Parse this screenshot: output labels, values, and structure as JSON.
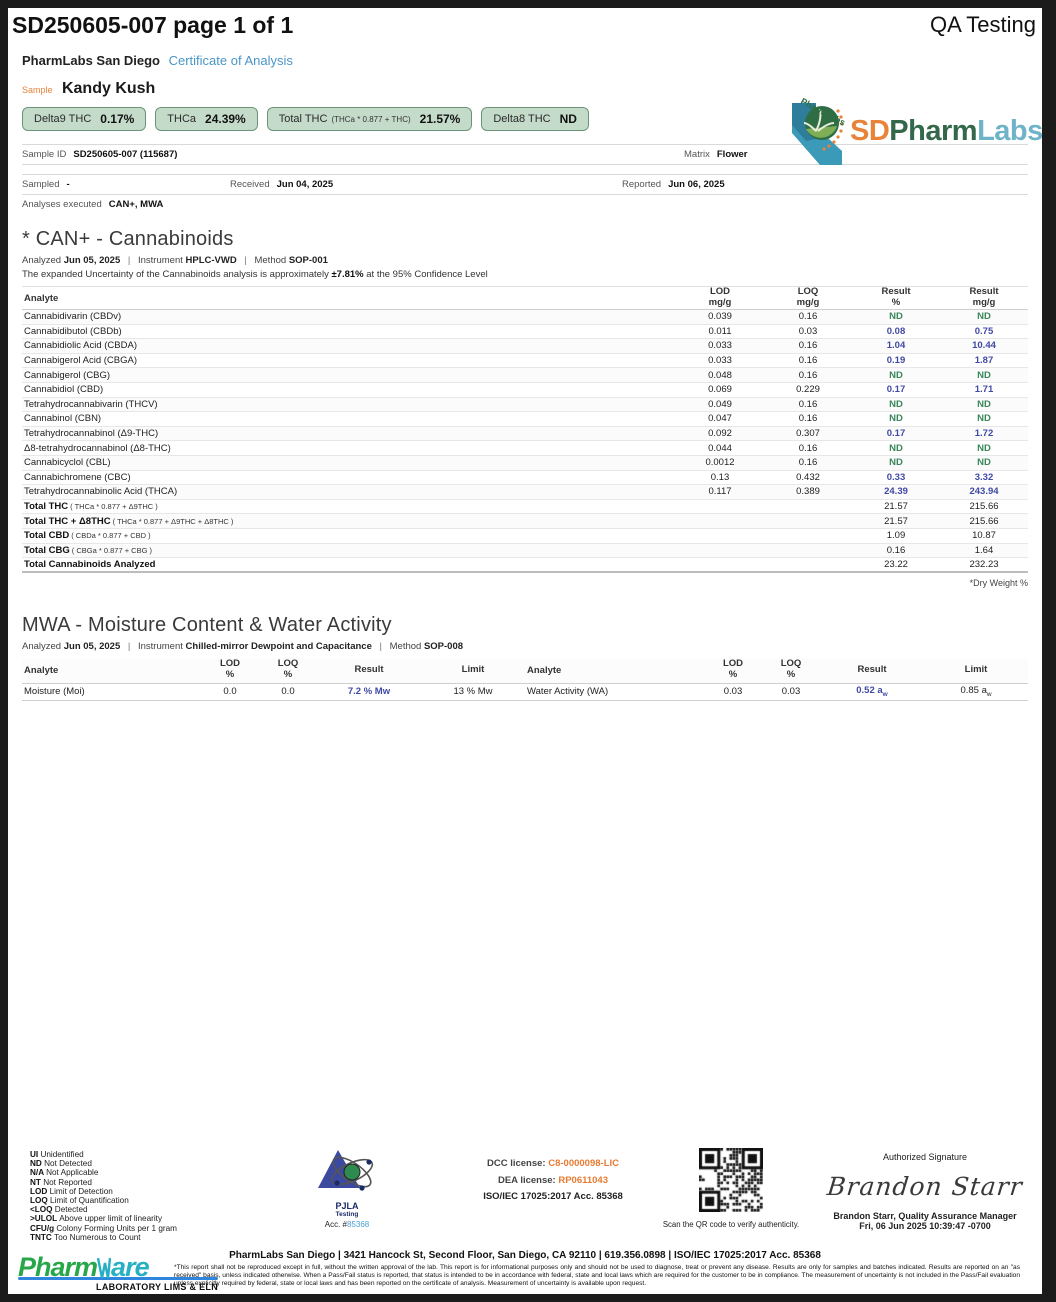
{
  "header": {
    "doc_title": "SD250605-007 page 1 of 1",
    "right_label": "QA Testing"
  },
  "lab": {
    "name": "PharmLabs San Diego",
    "doc_type": "Certificate of Analysis",
    "logo_sd": "SD",
    "logo_pharm": "Pharm",
    "logo_labs": "Labs"
  },
  "colors": {
    "accent_blue": "#4a96c8",
    "accent_orange": "#e8833a",
    "result_blue": "#4049a5",
    "nd_green": "#38875a",
    "pill_bg": "#c5dbca",
    "pill_border": "#6a9478"
  },
  "sample": {
    "label": "Sample",
    "name": "Kandy Kush",
    "pills": [
      {
        "label": "Delta9 THC",
        "formula": "",
        "value": "0.17%"
      },
      {
        "label": "THCa",
        "formula": "",
        "value": "24.39%"
      },
      {
        "label": "Total THC",
        "formula": "(THCa * 0.877 + THC)",
        "value": "21.57%"
      },
      {
        "label": "Delta8 THC",
        "formula": "",
        "value": "ND"
      }
    ],
    "meta": {
      "sample_id_label": "Sample ID",
      "sample_id": "SD250605-007 (115687)",
      "matrix_label": "Matrix",
      "matrix": "Flower",
      "sampled_label": "Sampled",
      "sampled": "-",
      "received_label": "Received",
      "received": "Jun 04, 2025",
      "reported_label": "Reported",
      "reported": "Jun 06, 2025",
      "analyses_label": "Analyses executed",
      "analyses": "CAN+, MWA"
    }
  },
  "cannabinoids": {
    "title": "* CAN+ - Cannabinoids",
    "analyzed_label": "Analyzed",
    "analyzed": "Jun 05, 2025",
    "instrument_label": "Instrument",
    "instrument": "HPLC-VWD",
    "method_label": "Method",
    "method": "SOP-001",
    "uncertainty_prefix": "The expanded Uncertainty of the Cannabinoids analysis is approximately",
    "uncertainty_value": "±7.81%",
    "uncertainty_suffix": "at the 95% Confidence Level",
    "analyte_col": "Analyte",
    "columns": [
      [
        "LOD",
        "mg/g"
      ],
      [
        "LOQ",
        "mg/g"
      ],
      [
        "Result",
        "%"
      ],
      [
        "Result",
        "mg/g"
      ]
    ],
    "rows": [
      {
        "analyte": "Cannabidivarin (CBDv)",
        "lod": "0.039",
        "loq": "0.16",
        "pct": "ND",
        "mgg": "ND"
      },
      {
        "analyte": "Cannabidibutol (CBDb)",
        "lod": "0.011",
        "loq": "0.03",
        "pct": "0.08",
        "mgg": "0.75"
      },
      {
        "analyte": "Cannabidiolic Acid (CBDA)",
        "lod": "0.033",
        "loq": "0.16",
        "pct": "1.04",
        "mgg": "10.44"
      },
      {
        "analyte": "Cannabigerol Acid (CBGA)",
        "lod": "0.033",
        "loq": "0.16",
        "pct": "0.19",
        "mgg": "1.87"
      },
      {
        "analyte": "Cannabigerol (CBG)",
        "lod": "0.048",
        "loq": "0.16",
        "pct": "ND",
        "mgg": "ND"
      },
      {
        "analyte": "Cannabidiol (CBD)",
        "lod": "0.069",
        "loq": "0.229",
        "pct": "0.17",
        "mgg": "1.71"
      },
      {
        "analyte": "Tetrahydrocannabivarin (THCV)",
        "lod": "0.049",
        "loq": "0.16",
        "pct": "ND",
        "mgg": "ND"
      },
      {
        "analyte": "Cannabinol (CBN)",
        "lod": "0.047",
        "loq": "0.16",
        "pct": "ND",
        "mgg": "ND"
      },
      {
        "analyte": "Tetrahydrocannabinol (Δ9-THC)",
        "lod": "0.092",
        "loq": "0.307",
        "pct": "0.17",
        "mgg": "1.72"
      },
      {
        "analyte": "Δ8-tetrahydrocannabinol (Δ8-THC)",
        "lod": "0.044",
        "loq": "0.16",
        "pct": "ND",
        "mgg": "ND"
      },
      {
        "analyte": "Cannabicyclol (CBL)",
        "lod": "0.0012",
        "loq": "0.16",
        "pct": "ND",
        "mgg": "ND"
      },
      {
        "analyte": "Cannabichromene (CBC)",
        "lod": "0.13",
        "loq": "0.432",
        "pct": "0.33",
        "mgg": "3.32"
      },
      {
        "analyte": "Tetrahydrocannabinolic Acid (THCA)",
        "lod": "0.117",
        "loq": "0.389",
        "pct": "24.39",
        "mgg": "243.94"
      }
    ],
    "totals": [
      {
        "label": "Total THC",
        "formula": "( THCa * 0.877 + Δ9THC )",
        "pct": "21.57",
        "mgg": "215.66"
      },
      {
        "label": "Total THC + Δ8THC",
        "formula": "( THCa * 0.877 + Δ9THC + Δ8THC )",
        "pct": "21.57",
        "mgg": "215.66"
      },
      {
        "label": "Total CBD",
        "formula": "( CBDa * 0.877 + CBD )",
        "pct": "1.09",
        "mgg": "10.87"
      },
      {
        "label": "Total CBG",
        "formula": "( CBGa * 0.877 + CBG )",
        "pct": "0.16",
        "mgg": "1.64"
      },
      {
        "label": "Total Cannabinoids Analyzed",
        "formula": "",
        "pct": "23.22",
        "mgg": "232.23"
      }
    ],
    "dry_weight_note": "*Dry Weight %"
  },
  "mwa": {
    "title": "MWA - Moisture Content & Water Activity",
    "analyzed_label": "Analyzed",
    "analyzed": "Jun 05, 2025",
    "instrument_label": "Instrument",
    "instrument": "Chilled-mirror Dewpoint and Capacitance",
    "method_label": "Method",
    "method": "SOP-008",
    "analyte_col": "Analyte",
    "columns": [
      [
        "LOD",
        "%"
      ],
      [
        "LOQ",
        "%"
      ],
      [
        "Result",
        ""
      ],
      [
        "Limit",
        ""
      ]
    ],
    "rows": [
      {
        "analyte": "Moisture (Moi)",
        "lod": "0.0",
        "loq": "0.0",
        "result": "7.2 % Mw",
        "limit": "13 % Mw"
      },
      {
        "analyte": "Water Activity (WA)",
        "lod": "0.03",
        "loq": "0.03",
        "result": "0.52 a_w",
        "limit": "0.85 a_w"
      }
    ]
  },
  "footer": {
    "legend": [
      {
        "abbr": "UI",
        "text": "Unidentified"
      },
      {
        "abbr": "ND",
        "text": "Not Detected"
      },
      {
        "abbr": "N/A",
        "text": "Not Applicable"
      },
      {
        "abbr": "NT",
        "text": "Not Reported"
      },
      {
        "abbr": "LOD",
        "text": "Limit of Detection"
      },
      {
        "abbr": "LOQ",
        "text": "Limit of Quantification"
      },
      {
        "abbr": "<LOQ",
        "text": "Detected"
      },
      {
        "abbr": ">ULOL",
        "text": "Above upper limit of linearity"
      },
      {
        "abbr": "CFU/g",
        "text": "Colony Forming Units per 1 gram"
      },
      {
        "abbr": "TNTC",
        "text": "Too Numerous to Count"
      }
    ],
    "pjla": {
      "name": "PJLA",
      "sub": "Testing",
      "acc_prefix": "Acc. #",
      "acc_number": "85368"
    },
    "licenses": {
      "dcc_label": "DCC license:",
      "dcc": "C8-0000098-LIC",
      "dea_label": "DEA license:",
      "dea": "RP0611043",
      "iso": "ISO/IEC 17025:2017 Acc. 85368"
    },
    "qr_caption": "Scan the QR code to verify authenticity.",
    "signature": {
      "label": "Authorized Signature",
      "script": "Brandon Starr",
      "name": "Brandon Starr, Quality Assurance Manager",
      "date": "Fri, 06 Jun 2025 10:39:47 -0700"
    },
    "address": "PharmLabs San Diego | 3421 Hancock St, Second Floor, San Diego, CA 92110 | 619.356.0898 | ISO/IEC 17025:2017 Acc. 85368",
    "disclaimer": "*This report shall not be reproduced except in full, without the written approval of the lab. This report is for informational purposes only and should not be used to diagnose, treat or prevent any disease. Results are only for samples and batches indicated. Results are reported on an \"as received\" basis, unless indicated otherwise. When a Pass/Fail status is reported, that status is intended to be in accordance with federal, state and local laws which are required for the customer to be in compliance. The measurement of uncertainty is not included in the Pass/Fail evaluation unless explicitly required by federal, state or local laws and has been reported on the certificate of analysis. Measurement of uncertainty is available upon request.",
    "pharmware": {
      "word1": "Pharm",
      "word2": "Ware",
      "sub": "LABORATORY LIMS & ELN"
    }
  }
}
